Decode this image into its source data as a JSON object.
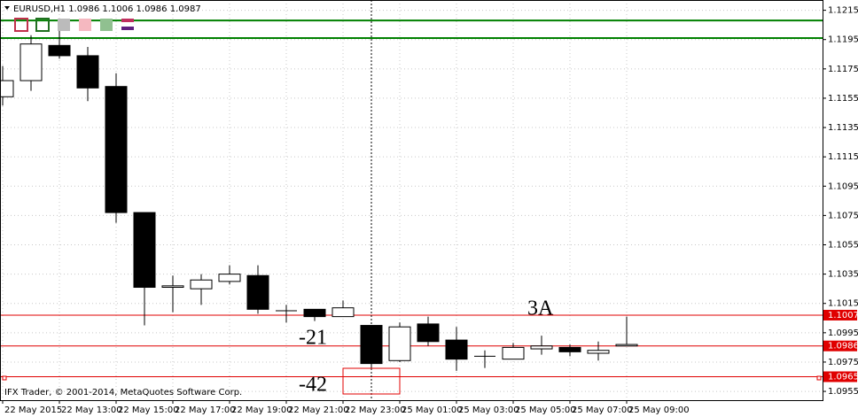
{
  "chart_data": {
    "type": "candlestick",
    "title": "EURUSD,H1  1.0986 1.1006 1.0986 1.0987",
    "footer": "IFX Trader, © 2001-2014, MetaQuotes Software Corp.",
    "categories": [
      "22 May 2015",
      null,
      "22 May 13:00",
      null,
      "22 May 15:00",
      null,
      "22 May 17:00",
      null,
      "22 May 19:00",
      null,
      "22 May 21:00",
      null,
      "22 May 23:00",
      null,
      "25 May 01:00",
      null,
      "25 May 03:00",
      null,
      "25 May 05:00",
      null,
      "25 May 07:00",
      null,
      "25 May 09:00"
    ],
    "open": [
      1.1156,
      1.1167,
      1.1191,
      1.1184,
      1.1163,
      1.1077,
      1.1026,
      1.1025,
      1.103,
      1.1034,
      1.101,
      1.1011,
      1.1006,
      1.1,
      1.0976,
      1.1001,
      1.099,
      1.0979,
      1.0977,
      1.0984,
      1.0985,
      1.0981,
      1.0986
    ],
    "high": [
      1.1177,
      1.1198,
      1.1205,
      1.119,
      1.1172,
      1.1077,
      1.1034,
      1.1035,
      1.1041,
      1.1041,
      1.1014,
      1.1011,
      1.1017,
      1.1,
      1.1002,
      1.1006,
      1.0999,
      1.0983,
      1.0988,
      1.0993,
      1.0987,
      1.0989,
      1.1006
    ],
    "low": [
      1.115,
      1.116,
      1.1182,
      1.1153,
      1.107,
      1.1,
      1.1009,
      1.1014,
      1.1028,
      1.1008,
      1.1002,
      1.1003,
      1.1006,
      1.097,
      1.0975,
      1.0986,
      1.0969,
      1.0971,
      1.0977,
      1.098,
      1.0979,
      1.0976,
      1.0986
    ],
    "close": [
      1.1167,
      1.1192,
      1.1184,
      1.1162,
      1.1077,
      1.1026,
      1.1027,
      1.1031,
      1.1035,
      1.1011,
      1.101,
      1.1006,
      1.1012,
      1.0974,
      1.0999,
      1.0989,
      1.0977,
      1.0979,
      1.0985,
      1.0986,
      1.0982,
      1.0983,
      1.0987
    ],
    "ylim": [
      1.0949,
      1.1222
    ],
    "yticks": [
      1.0955,
      1.0975,
      1.0995,
      1.1015,
      1.1035,
      1.1055,
      1.1075,
      1.1095,
      1.1115,
      1.1135,
      1.1155,
      1.1175,
      1.1195,
      1.1215
    ],
    "levels": [
      1.1007,
      1.0986,
      1.0965
    ],
    "level_color": "#e00000",
    "green_levels": [
      1.1208,
      1.1196
    ],
    "green_color": "#008000",
    "annotations": [
      {
        "text": "3A"
      },
      {
        "text": "-21"
      },
      {
        "text": "-42"
      }
    ],
    "grid": true
  }
}
